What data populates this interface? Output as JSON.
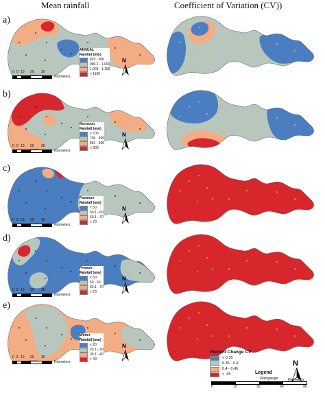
{
  "titles": {
    "left": "Mean rainfall",
    "right": "Coefficient of Variation (CV))"
  },
  "colors": {
    "blue": "#4a7ec0",
    "grey": "#b7c7be",
    "peach": "#f3ad84",
    "red": "#d8262d",
    "gauge": "#f2e94a"
  },
  "rows": [
    {
      "label": "a)",
      "legend": {
        "title": [
          "ANNUAL",
          "Rainfall (mm)"
        ],
        "items": [
          "829 - 900",
          "900.1 - 1,000",
          "1,001 - 1,100",
          "> 1100"
        ]
      },
      "scale_text": "Kilometers"
    },
    {
      "label": "b)",
      "legend": {
        "title": [
          "Monsoon",
          "Rainfall (mm)"
        ],
        "items": [
          "< 700",
          "700 - 800",
          "801 - 900",
          "> 900"
        ]
      },
      "scale_text": "Kilometers"
    },
    {
      "label": "c)",
      "legend": {
        "title": [
          "Postmon",
          "Rainfall (mm)"
        ],
        "items": [
          "< 50",
          "50.1 - 60",
          "60.1 - 70",
          "> 70"
        ]
      },
      "scale_text": "Kilometers"
    },
    {
      "label": "d)",
      "legend": {
        "title": [
          "Premon",
          "Rainfall (mm)"
        ],
        "items": [
          "< 50",
          "50 - 60",
          "60.1 - 70",
          "> 70"
        ]
      },
      "scale_text": "Kilometers"
    },
    {
      "label": "e)",
      "legend": {
        "title": [
          "Winter",
          "Rainfall (mm)"
        ],
        "items": [
          "< 20",
          "20.1 - 30",
          "30.1 - 40",
          "> 40"
        ]
      },
      "scale_text": "Kilometers"
    }
  ],
  "small_scale_ticks": [
    "0",
    "5",
    "10",
    "20",
    "30"
  ],
  "north_label": "N",
  "cv_legend": {
    "title": "Percent Change CV",
    "items": [
      "< 0.35",
      "0.35 - 0.4",
      "0.4 - 0.45",
      "> .45"
    ]
  },
  "gauge_legend": {
    "title": "Legend",
    "item": "Raingauge"
  },
  "big_scale": {
    "ticks": [
      "0",
      "15",
      "30",
      "60",
      "90"
    ],
    "unit": "Kilometers"
  }
}
